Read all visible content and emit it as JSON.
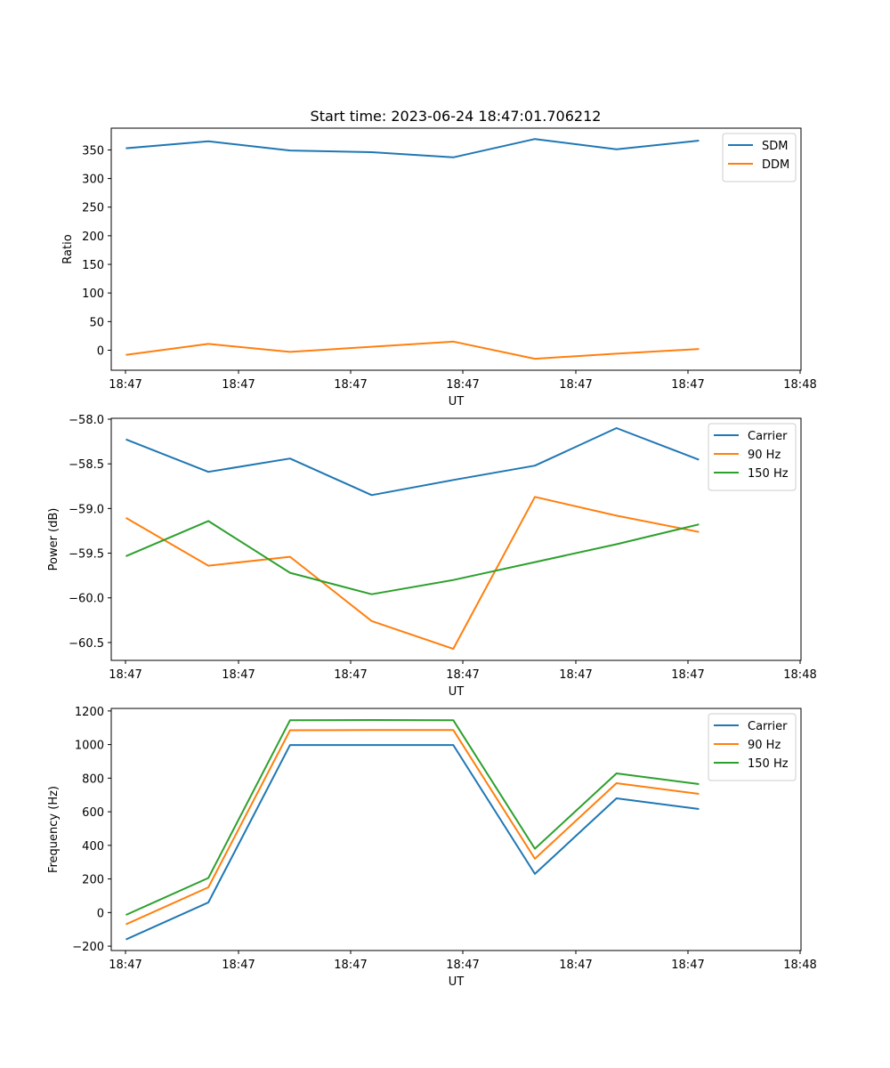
{
  "figure": {
    "title": "Start time: 2023-06-24 18:47:01.706212"
  },
  "chart_data": [
    {
      "type": "line",
      "xlabel": "UT",
      "ylabel": "Ratio",
      "x_tick_labels": [
        "18:47",
        "18:47",
        "18:47",
        "18:47",
        "18:47",
        "18:47",
        "18:48"
      ],
      "x": [
        1,
        2,
        3,
        4,
        5,
        6,
        7,
        8
      ],
      "xlim": [
        0.81,
        9.26
      ],
      "ylim": [
        -35,
        388
      ],
      "y_ticks": [
        0,
        50,
        100,
        150,
        200,
        250,
        300,
        350
      ],
      "legend_position": "upper right",
      "series": [
        {
          "name": "SDM",
          "color": "#1f77b4",
          "values": [
            353,
            365,
            349,
            346,
            337,
            369,
            351,
            366
          ]
        },
        {
          "name": "DDM",
          "color": "#ff7f0e",
          "values": [
            -8,
            11,
            -3,
            6,
            15,
            -15,
            -6,
            2
          ]
        }
      ]
    },
    {
      "type": "line",
      "xlabel": "UT",
      "ylabel": "Power (dB)",
      "x_tick_labels": [
        "18:47",
        "18:47",
        "18:47",
        "18:47",
        "18:47",
        "18:47",
        "18:48"
      ],
      "x": [
        1,
        2,
        3,
        4,
        5,
        6,
        7,
        8
      ],
      "xlim": [
        0.81,
        9.26
      ],
      "ylim": [
        -60.7,
        -57.99
      ],
      "y_ticks": [
        -60.5,
        -60.0,
        -59.5,
        -59.0,
        -58.5,
        -58.0
      ],
      "y_tick_labels": [
        "−60.5",
        "−60.0",
        "−59.5",
        "−59.0",
        "−58.5",
        "−58.0"
      ],
      "legend_position": "upper right",
      "series": [
        {
          "name": "Carrier",
          "color": "#1f77b4",
          "values": [
            -58.23,
            -58.59,
            -58.44,
            -58.85,
            -58.68,
            -58.52,
            -58.1,
            -58.45
          ]
        },
        {
          "name": "90 Hz",
          "color": "#ff7f0e",
          "values": [
            -59.11,
            -59.64,
            -59.54,
            -60.26,
            -60.57,
            -58.87,
            -59.08,
            -59.26
          ]
        },
        {
          "name": "150 Hz",
          "color": "#2ca02c",
          "values": [
            -59.53,
            -59.14,
            -59.72,
            -59.96,
            -59.8,
            -59.6,
            -59.4,
            -59.18
          ]
        }
      ]
    },
    {
      "type": "line",
      "xlabel": "UT",
      "ylabel": "Frequency (Hz)",
      "x_tick_labels": [
        "18:47",
        "18:47",
        "18:47",
        "18:47",
        "18:47",
        "18:47",
        "18:48"
      ],
      "x": [
        1,
        2,
        3,
        4,
        5,
        6,
        7,
        8
      ],
      "xlim": [
        0.81,
        9.26
      ],
      "ylim": [
        -226,
        1215
      ],
      "y_ticks": [
        -200,
        0,
        200,
        400,
        600,
        800,
        1000,
        1200
      ],
      "y_tick_labels": [
        "−200",
        "0",
        "200",
        "400",
        "600",
        "800",
        "1000",
        "1200"
      ],
      "legend_position": "upper right",
      "series": [
        {
          "name": "Carrier",
          "color": "#1f77b4",
          "values": [
            -158,
            60,
            997,
            997,
            997,
            230,
            680,
            617
          ]
        },
        {
          "name": "90 Hz",
          "color": "#ff7f0e",
          "values": [
            -68,
            150,
            1085,
            1087,
            1087,
            320,
            770,
            707
          ]
        },
        {
          "name": "150 Hz",
          "color": "#2ca02c",
          "values": [
            -12,
            206,
            1145,
            1146,
            1145,
            380,
            828,
            765
          ]
        }
      ]
    }
  ]
}
